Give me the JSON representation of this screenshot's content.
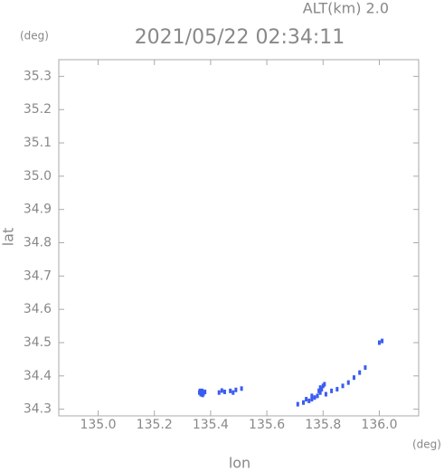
{
  "chart_data": {
    "type": "scatter",
    "title": "2021/05/22 02:34:11",
    "annotation": "ALT(km) 2.0",
    "x_label": "lon",
    "y_label": "lat",
    "x_unit": "(deg)",
    "y_unit": "(deg)",
    "color": "#3a5cf0",
    "x": [
      135.36,
      135.365,
      135.37,
      135.375,
      135.38,
      135.362,
      135.372,
      135.43,
      135.45,
      135.47,
      135.49,
      135.51,
      135.44,
      135.48,
      135.71,
      135.73,
      135.75,
      135.76,
      135.77,
      135.78,
      135.79,
      135.795,
      135.8,
      135.805,
      135.79,
      135.785,
      135.81,
      135.83,
      135.85,
      135.87,
      135.89,
      135.91,
      135.93,
      135.95,
      135.74,
      135.76,
      136.0,
      136.01
    ],
    "y": [
      34.35,
      34.345,
      34.355,
      34.348,
      34.352,
      34.355,
      34.343,
      34.35,
      34.352,
      34.355,
      34.358,
      34.362,
      34.356,
      34.35,
      34.315,
      34.32,
      34.325,
      34.33,
      34.335,
      34.34,
      34.35,
      34.36,
      34.37,
      34.375,
      34.365,
      34.355,
      34.345,
      34.355,
      34.36,
      34.37,
      34.38,
      34.395,
      34.41,
      34.425,
      34.33,
      34.34,
      34.5,
      34.505
    ],
    "xlim": [
      134.86,
      136.14
    ],
    "ylim": [
      34.28,
      35.35
    ],
    "xticks": [
      {
        "value": 135,
        "label": "135.0"
      },
      135.2,
      135.4,
      135.6,
      135.8,
      {
        "value": 136,
        "label": "136.0"
      }
    ],
    "yticks": [
      34.3,
      34.4,
      34.5,
      34.6,
      34.7,
      34.8,
      34.9,
      {
        "value": 35,
        "label": "35.0"
      },
      35.1,
      35.2,
      35.3
    ]
  }
}
